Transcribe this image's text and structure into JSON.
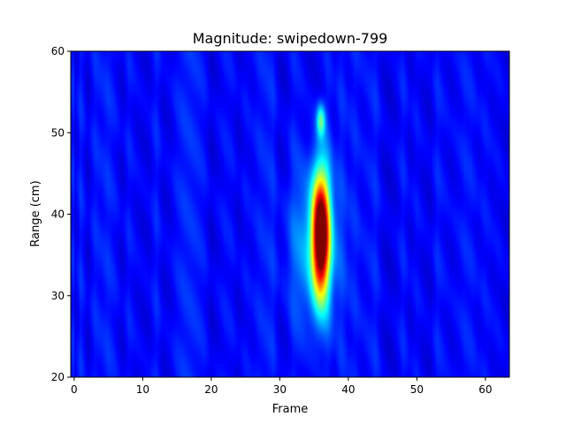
{
  "chart_data": {
    "type": "heatmap",
    "title": "Magnitude: swipedown-799",
    "xlabel": "Frame",
    "ylabel": "Range (cm)",
    "xlim": [
      -0.5,
      63.5
    ],
    "ylim": [
      20,
      60
    ],
    "xticks": [
      0,
      10,
      20,
      30,
      40,
      50,
      60
    ],
    "yticks": [
      20,
      30,
      40,
      50,
      60
    ],
    "colormap": "jet",
    "grid": false,
    "legend": "none",
    "hotspots": [
      {
        "frame": 36,
        "range_center": 37.5,
        "range_halfwidth": 9.5,
        "frame_halfwidth": 1.6,
        "magnitude": 1.0
      },
      {
        "frame": 36,
        "range_center": 51.5,
        "range_halfwidth": 2.5,
        "frame_halfwidth": 0.8,
        "magnitude": 0.32
      },
      {
        "frame": 35,
        "range_center": 36.0,
        "range_halfwidth": 12.0,
        "frame_halfwidth": 4.5,
        "magnitude": 0.18
      }
    ],
    "background_magnitude": 0.13
  }
}
